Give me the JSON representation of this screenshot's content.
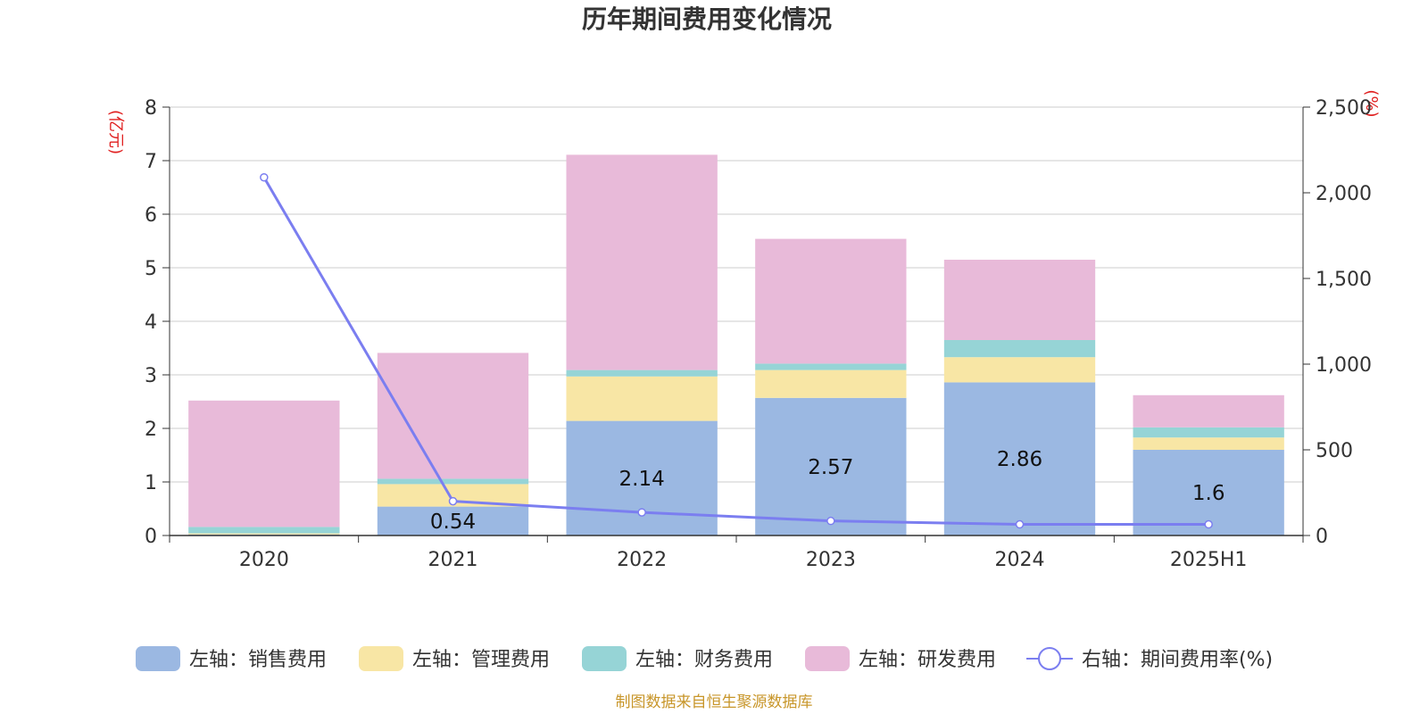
{
  "title": "历年期间费用变化情况",
  "source": "制图数据来自恒生聚源数据库",
  "chart_data": {
    "type": "bar",
    "stacked": true,
    "title": "历年期间费用变化情况",
    "categories": [
      "2020",
      "2021",
      "2022",
      "2023",
      "2024",
      "2025H1"
    ],
    "y_left": {
      "unit": "(亿元)",
      "min": 0,
      "max": 8,
      "ticks": [
        "0",
        "1",
        "2",
        "3",
        "4",
        "5",
        "6",
        "7",
        "8"
      ]
    },
    "y_right": {
      "unit": "(%)",
      "min": 0,
      "max": 2500,
      "ticks": [
        "0",
        "500",
        "1,000",
        "1,500",
        "2,000",
        "2,500"
      ]
    },
    "grid": true,
    "legend_position": "bottom",
    "series": [
      {
        "name": "左轴：销售费用",
        "axis": "left",
        "type": "bar",
        "color": "#9bb8e2",
        "values": [
          0.02,
          0.54,
          2.14,
          2.57,
          2.86,
          1.6
        ],
        "labels": [
          "",
          "0.54",
          "2.14",
          "2.57",
          "2.86",
          "1.6"
        ]
      },
      {
        "name": "左轴：管理费用",
        "axis": "left",
        "type": "bar",
        "color": "#f8e6a5",
        "values": [
          0.02,
          0.42,
          0.83,
          0.52,
          0.47,
          0.23
        ],
        "labels": [
          "",
          "",
          "",
          "",
          "",
          ""
        ]
      },
      {
        "name": "左轴：财务费用",
        "axis": "left",
        "type": "bar",
        "color": "#96d4d6",
        "values": [
          0.12,
          0.1,
          0.12,
          0.12,
          0.32,
          0.19
        ],
        "labels": [
          "",
          "",
          "",
          "",
          "",
          ""
        ]
      },
      {
        "name": "左轴：研发费用",
        "axis": "left",
        "type": "bar",
        "color": "#e8bad9",
        "values": [
          2.36,
          2.35,
          4.02,
          2.33,
          1.5,
          0.6
        ],
        "labels": [
          "",
          "",
          "",
          "",
          "",
          ""
        ]
      },
      {
        "name": "右轴：期间费用率(%)",
        "axis": "right",
        "type": "line",
        "color": "#7b7ef0",
        "values": [
          2090,
          200,
          135,
          85,
          65,
          65
        ]
      }
    ]
  }
}
